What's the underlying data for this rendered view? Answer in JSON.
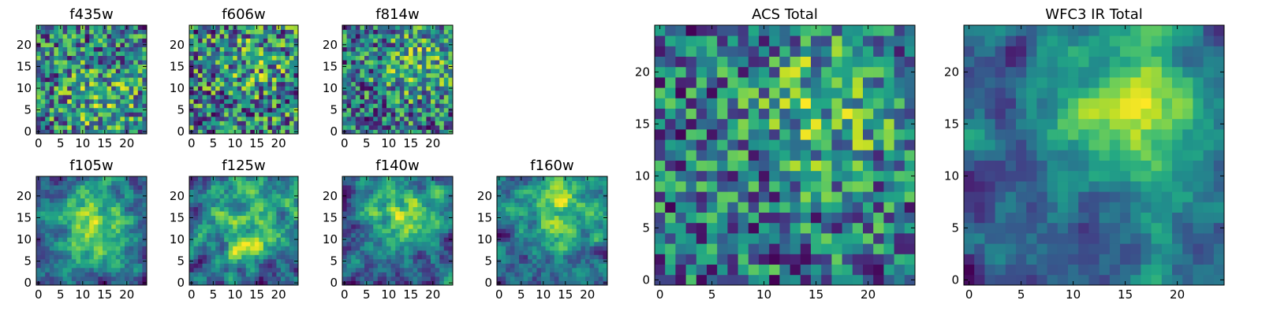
{
  "chart_data": [
    {
      "type": "heatmap",
      "title": "f435w",
      "xlim": [
        0,
        24
      ],
      "ylim": [
        0,
        24
      ],
      "xticks": [
        0,
        5,
        10,
        15,
        20
      ],
      "yticks": [
        0,
        5,
        10,
        15,
        20
      ],
      "colormap": "viridis",
      "grid_size": [
        25,
        25
      ],
      "seed": 11,
      "smooth": 0.0,
      "blob": [
        14,
        7,
        8
      ],
      "blob_strength": 0.25
    },
    {
      "type": "heatmap",
      "title": "f606w",
      "xlim": [
        0,
        24
      ],
      "ylim": [
        0,
        24
      ],
      "xticks": [
        0,
        5,
        10,
        15,
        20
      ],
      "yticks": [
        0,
        5,
        10,
        15,
        20
      ],
      "colormap": "viridis",
      "grid_size": [
        25,
        25
      ],
      "seed": 22,
      "smooth": 0.0,
      "blob": [
        15,
        16,
        6
      ],
      "blob_strength": 0.15
    },
    {
      "type": "heatmap",
      "title": "f814w",
      "xlim": [
        0,
        24
      ],
      "ylim": [
        0,
        24
      ],
      "xticks": [
        0,
        5,
        10,
        15,
        20
      ],
      "yticks": [
        0,
        5,
        10,
        15,
        20
      ],
      "colormap": "viridis",
      "grid_size": [
        25,
        25
      ],
      "seed": 33,
      "smooth": 0.0,
      "blob": [
        16,
        15,
        6
      ],
      "blob_strength": 0.3
    },
    {
      "type": "heatmap",
      "title": "f105w",
      "xlim": [
        0,
        24
      ],
      "ylim": [
        0,
        24
      ],
      "xticks": [
        0,
        5,
        10,
        15,
        20
      ],
      "yticks": [
        0,
        5,
        10,
        15,
        20
      ],
      "colormap": "viridis",
      "grid_size": [
        25,
        25
      ],
      "seed": 44,
      "smooth": 0.55,
      "blob": [
        13,
        13,
        7
      ],
      "blob_strength": 0.45
    },
    {
      "type": "heatmap",
      "title": "f125w",
      "xlim": [
        0,
        24
      ],
      "ylim": [
        0,
        24
      ],
      "xticks": [
        0,
        5,
        10,
        15,
        20
      ],
      "yticks": [
        0,
        5,
        10,
        15,
        20
      ],
      "colormap": "viridis",
      "grid_size": [
        25,
        25
      ],
      "seed": 55,
      "smooth": 0.55,
      "blob": [
        15,
        15,
        7
      ],
      "blob_strength": 0.35
    },
    {
      "type": "heatmap",
      "title": "f140w",
      "xlim": [
        0,
        24
      ],
      "ylim": [
        0,
        24
      ],
      "xticks": [
        0,
        5,
        10,
        15,
        20
      ],
      "yticks": [
        0,
        5,
        10,
        15,
        20
      ],
      "colormap": "viridis",
      "grid_size": [
        25,
        25
      ],
      "seed": 66,
      "smooth": 0.55,
      "blob": [
        14,
        16,
        7
      ],
      "blob_strength": 0.4
    },
    {
      "type": "heatmap",
      "title": "f160w",
      "xlim": [
        0,
        24
      ],
      "ylim": [
        0,
        24
      ],
      "xticks": [
        0,
        5,
        10,
        15,
        20
      ],
      "yticks": [
        0,
        5,
        10,
        15,
        20
      ],
      "colormap": "viridis",
      "grid_size": [
        25,
        25
      ],
      "seed": 77,
      "smooth": 0.55,
      "blob": [
        15,
        17,
        6
      ],
      "blob_strength": 0.4
    },
    {
      "type": "heatmap",
      "title": "ACS Total",
      "xlim": [
        0,
        24
      ],
      "ylim": [
        0,
        24
      ],
      "xticks": [
        0,
        5,
        10,
        15,
        20
      ],
      "yticks": [
        0,
        5,
        10,
        15,
        20
      ],
      "colormap": "viridis",
      "grid_size": [
        25,
        25
      ],
      "seed": 88,
      "smooth": 0.0,
      "blob": [
        16,
        17,
        5
      ],
      "blob_strength": 0.35
    },
    {
      "type": "heatmap",
      "title": "WFC3 IR Total",
      "xlim": [
        0,
        24
      ],
      "ylim": [
        0,
        24
      ],
      "xticks": [
        0,
        5,
        10,
        15,
        20
      ],
      "yticks": [
        0,
        5,
        10,
        15,
        20
      ],
      "colormap": "viridis",
      "grid_size": [
        25,
        25
      ],
      "seed": 99,
      "smooth": 0.6,
      "blob": [
        16,
        16,
        6
      ],
      "blob_strength": 0.55
    }
  ]
}
